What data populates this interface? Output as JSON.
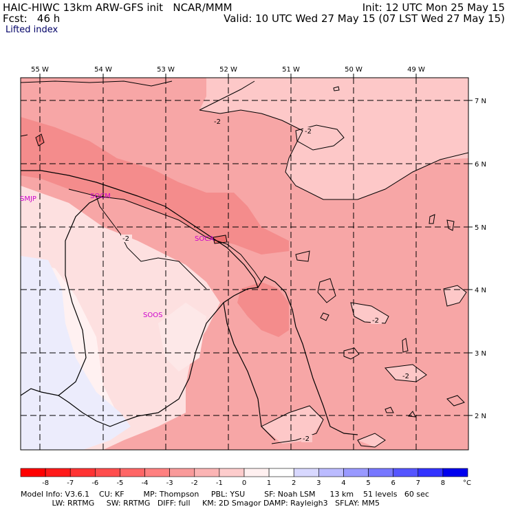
{
  "header": {
    "title_left": "HAIC-HIWC 13km ARW-GFS init   NCAR/MMM",
    "init": "Init: 12 UTC Mon 25 May 15",
    "fcst": "Fcst:   46 h",
    "valid": "Valid: 10 UTC Wed 27 May 15 (07 LST Wed 27 May 15)",
    "field": "Lifted index"
  },
  "map": {
    "lon_labels": [
      "55 W",
      "54 W",
      "53 W",
      "52 W",
      "51 W",
      "50 W",
      "49 W"
    ],
    "lat_labels": [
      "7 N",
      "6 N",
      "5 N",
      "4 N",
      "3 N",
      "2 N"
    ],
    "contour_labels": [
      "-2",
      "-2",
      "-2",
      "-2",
      "-2",
      "-2"
    ],
    "stations": [
      "SMJP",
      "SOCM",
      "SOCA",
      "SOOS"
    ]
  },
  "colorbar": {
    "ticks": [
      "-8",
      "-7",
      "-6",
      "-5",
      "-4",
      "-3",
      "-2",
      "-1",
      "0",
      "1",
      "2",
      "3",
      "4",
      "5",
      "6",
      "7",
      "8"
    ],
    "unit": "°C",
    "colors": [
      "#ff1a1a",
      "#ff3333",
      "#ff4d4d",
      "#ff6666",
      "#ff8080",
      "#f99a9a",
      "#fbb4b4",
      "#fdcccc",
      "#fff0f0",
      "#ffffff",
      "#d8d8ff",
      "#bbbbff",
      "#9999ff",
      "#7777ff",
      "#5555ff",
      "#3333ff",
      "#0000ee"
    ]
  },
  "footer": {
    "line1": "Model Info: V3.6.1    CU: KF        MP: Thompson     PBL: YSU        SF: Noah LSM      13 km    51 levels   60 sec",
    "line2": "             LW: RRTMG     SW: RRTMG   DIFF: full     KM: 2D Smagor DAMP: Rayleigh3   SFLAY: MM5"
  }
}
